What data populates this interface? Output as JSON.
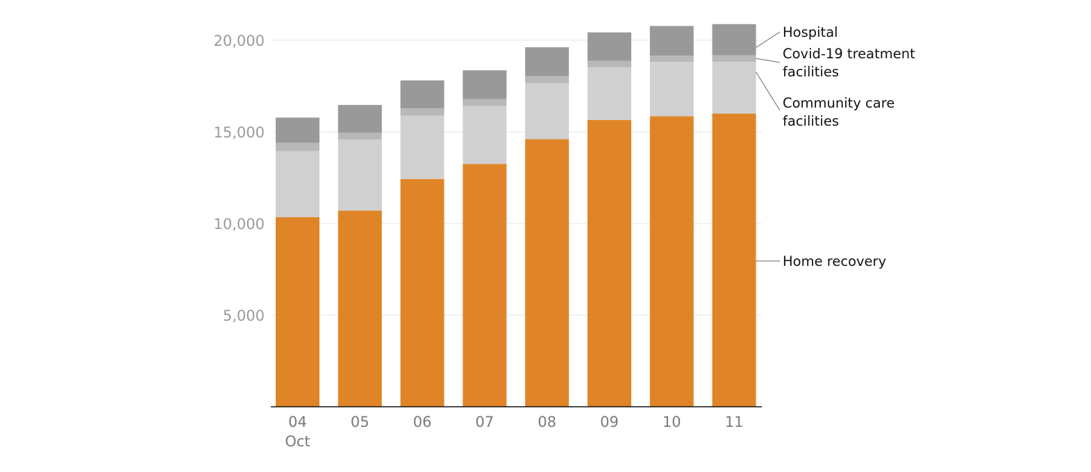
{
  "chart_data": {
    "type": "bar",
    "stacked": true,
    "categories": [
      "04",
      "05",
      "06",
      "07",
      "08",
      "09",
      "10",
      "11"
    ],
    "x_sublabel": {
      "04": "Oct"
    },
    "series": [
      {
        "name": "Home recovery",
        "color": "#e08527",
        "values": [
          10350,
          10700,
          12430,
          13250,
          14600,
          15650,
          15850,
          16000
        ]
      },
      {
        "name": "Community care facilities",
        "color": "#d0d0d0",
        "values": [
          3600,
          3880,
          3460,
          3160,
          3060,
          2880,
          2970,
          2830
        ]
      },
      {
        "name": "Covid-19 treatment facilities",
        "color": "#b8b8b8",
        "values": [
          450,
          380,
          400,
          390,
          380,
          340,
          340,
          350
        ]
      },
      {
        "name": "Hospital",
        "color": "#999999",
        "values": [
          1380,
          1510,
          1520,
          1560,
          1580,
          1560,
          1620,
          1700
        ]
      }
    ],
    "yticks": [
      5000,
      10000,
      15000,
      20000
    ],
    "ytick_labels": [
      "5,000",
      "10,000",
      "15,000",
      "20,000"
    ],
    "ylim": [
      0,
      20000
    ],
    "grid": true,
    "legend": "right, labels with leader lines",
    "title": "",
    "xlabel": "",
    "ylabel": ""
  }
}
